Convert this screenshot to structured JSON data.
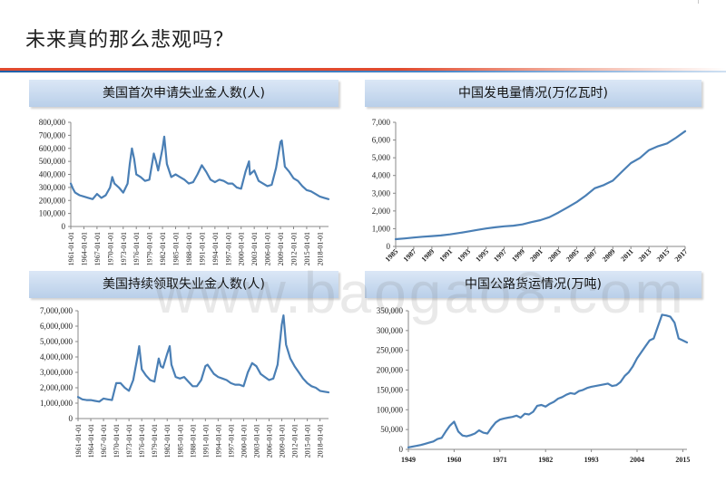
{
  "page": {
    "title": "未来真的那么悲观吗？",
    "watermark": "www.baogao8.com"
  },
  "colors": {
    "line": "#4a7fb5",
    "accent_red": "#e04a2e",
    "accent_blue": "#1f5fa8",
    "header_bg": "#c9dbf0"
  },
  "chart_data": [
    {
      "id": "initial-claims",
      "type": "line",
      "title": "美国首次申请失业金人数(人)",
      "xlabel": "",
      "ylabel": "",
      "ylim": [
        0,
        800000
      ],
      "yticks": [
        0,
        100000,
        200000,
        300000,
        400000,
        500000,
        600000,
        700000,
        800000
      ],
      "ytick_labels": [
        "0",
        "100,000",
        "200,000",
        "300,000",
        "400,000",
        "500,000",
        "600,000",
        "700,000",
        "800,000"
      ],
      "xlim": [
        1961,
        2020
      ],
      "xtick_labels": [
        "1961-01-01",
        "1964-01-01",
        "1967-01-01",
        "1970-01-01",
        "1973-01-01",
        "1976-01-01",
        "1979-01-01",
        "1982-01-01",
        "1985-01-01",
        "1988-01-01",
        "1991-01-01",
        "1994-01-01",
        "1997-01-01",
        "2000-01-01",
        "2003-01-01",
        "2006-01-01",
        "2009-01-01",
        "2012-01-01",
        "2015-01-01",
        "2018-01-01"
      ],
      "x": [
        1961,
        1961.5,
        1962,
        1963,
        1964,
        1965,
        1966,
        1967,
        1968,
        1969,
        1970,
        1970.5,
        1971,
        1972,
        1973,
        1974,
        1974.5,
        1975,
        1975.5,
        1976,
        1977,
        1978,
        1979,
        1980,
        1980.5,
        1981,
        1982,
        1982.4,
        1983,
        1984,
        1985,
        1986,
        1987,
        1988,
        1989,
        1990,
        1991,
        1992,
        1993,
        1994,
        1995,
        1996,
        1997,
        1998,
        1999,
        2000,
        2001,
        2001.8,
        2002,
        2003,
        2004,
        2005,
        2006,
        2007,
        2008,
        2009,
        2009.3,
        2010,
        2011,
        2012,
        2013,
        2014,
        2015,
        2016,
        2017,
        2018,
        2019,
        2020
      ],
      "values": [
        330000,
        290000,
        260000,
        240000,
        230000,
        220000,
        210000,
        250000,
        220000,
        240000,
        300000,
        380000,
        330000,
        300000,
        260000,
        330000,
        480000,
        600000,
        520000,
        400000,
        380000,
        350000,
        360000,
        560000,
        500000,
        430000,
        600000,
        690000,
        480000,
        380000,
        400000,
        380000,
        360000,
        330000,
        340000,
        400000,
        470000,
        420000,
        360000,
        340000,
        360000,
        350000,
        330000,
        330000,
        300000,
        290000,
        420000,
        500000,
        400000,
        430000,
        350000,
        330000,
        310000,
        320000,
        450000,
        650000,
        660000,
        460000,
        420000,
        370000,
        350000,
        310000,
        280000,
        270000,
        250000,
        230000,
        220000,
        210000
      ]
    },
    {
      "id": "power-generation",
      "type": "line",
      "title": "中国发电量情况(万亿瓦时)",
      "xlabel": "",
      "ylabel": "",
      "ylim": [
        0,
        7000
      ],
      "yticks": [
        0,
        1000,
        2000,
        3000,
        4000,
        5000,
        6000,
        7000
      ],
      "ytick_labels": [
        "0",
        "1,000",
        "2,000",
        "3,000",
        "4,000",
        "5,000",
        "6,000",
        "7,000"
      ],
      "xlim": [
        1985,
        2017
      ],
      "xtick_labels": [
        "1985",
        "1987",
        "1989",
        "1991",
        "1993",
        "1995",
        "1997",
        "1999",
        "2001",
        "2003",
        "2005",
        "2007",
        "2009",
        "2011",
        "2013",
        "2015",
        "2017"
      ],
      "x": [
        1985,
        1986,
        1987,
        1988,
        1989,
        1990,
        1991,
        1992,
        1993,
        1994,
        1995,
        1996,
        1997,
        1998,
        1999,
        2000,
        2001,
        2002,
        2003,
        2004,
        2005,
        2006,
        2007,
        2008,
        2009,
        2010,
        2011,
        2012,
        2013,
        2014,
        2015,
        2016,
        2017
      ],
      "values": [
        410,
        450,
        500,
        545,
        585,
        620,
        680,
        755,
        840,
        930,
        1010,
        1080,
        1135,
        1170,
        1240,
        1370,
        1480,
        1650,
        1910,
        2200,
        2500,
        2860,
        3280,
        3460,
        3710,
        4210,
        4700,
        4990,
        5430,
        5650,
        5810,
        6130,
        6500
      ]
    },
    {
      "id": "continuing-claims",
      "type": "line",
      "title": "美国持续领取失业金人数(人)",
      "xlabel": "",
      "ylabel": "",
      "ylim": [
        0,
        7000000
      ],
      "yticks": [
        0,
        1000000,
        2000000,
        3000000,
        4000000,
        5000000,
        6000000,
        7000000
      ],
      "ytick_labels": [
        "0",
        "1,000,000",
        "2,000,000",
        "3,000,000",
        "4,000,000",
        "5,000,000",
        "6,000,000",
        "7,000,000"
      ],
      "xlim": [
        1961,
        2020
      ],
      "xtick_labels": [
        "1961-01-01",
        "1964-01-01",
        "1967-01-01",
        "1970-01-01",
        "1973-01-01",
        "1976-01-01",
        "1979-01-01",
        "1982-01-01",
        "1985-01-01",
        "1988-01-01",
        "1991-01-01",
        "1994-01-01",
        "1997-01-01",
        "2000-01-01",
        "2003-01-01",
        "2006-01-01",
        "2009-01-01",
        "2012-01-01",
        "2015-01-01",
        "2018-01-01"
      ],
      "x": [
        1961,
        1962,
        1963,
        1964,
        1965,
        1966,
        1967,
        1968,
        1969,
        1970,
        1971,
        1972,
        1973,
        1974,
        1975,
        1975.4,
        1976,
        1977,
        1978,
        1979,
        1980,
        1980.5,
        1981,
        1982,
        1982.6,
        1983,
        1984,
        1985,
        1986,
        1987,
        1988,
        1989,
        1990,
        1991,
        1991.5,
        1992,
        1993,
        1994,
        1995,
        1996,
        1997,
        1998,
        1999,
        2000,
        2001,
        2002,
        2003,
        2004,
        2005,
        2006,
        2007,
        2008,
        2009,
        2009.4,
        2010,
        2011,
        2012,
        2013,
        2014,
        2015,
        2016,
        2017,
        2018,
        2019,
        2020
      ],
      "values": [
        1400000,
        1250000,
        1200000,
        1200000,
        1150000,
        1100000,
        1300000,
        1250000,
        1200000,
        2300000,
        2300000,
        2000000,
        1800000,
        2500000,
        4000000,
        4700000,
        3200000,
        2800000,
        2500000,
        2400000,
        3900000,
        3400000,
        3300000,
        4200000,
        4700000,
        3500000,
        2700000,
        2600000,
        2700000,
        2400000,
        2100000,
        2100000,
        2500000,
        3400000,
        3500000,
        3300000,
        2900000,
        2700000,
        2600000,
        2500000,
        2300000,
        2200000,
        2200000,
        2100000,
        3000000,
        3600000,
        3400000,
        2900000,
        2700000,
        2500000,
        2600000,
        3500000,
        6100000,
        6700000,
        4800000,
        3900000,
        3400000,
        3000000,
        2600000,
        2300000,
        2100000,
        2000000,
        1800000,
        1750000,
        1700000
      ]
    },
    {
      "id": "highway-freight",
      "type": "line",
      "title": "中国公路货运情况(万吨)",
      "xlabel": "",
      "ylabel": "",
      "ylim": [
        0,
        350000
      ],
      "yticks": [
        0,
        50000,
        100000,
        150000,
        200000,
        250000,
        300000,
        350000
      ],
      "ytick_labels": [
        "0",
        "50,000",
        "100,000",
        "150,000",
        "200,000",
        "250,000",
        "300,000",
        "350,000"
      ],
      "xlim": [
        1949,
        2016
      ],
      "xtick_labels": [
        "1949",
        "1960",
        "1971",
        "1982",
        "1993",
        "2004",
        "2015"
      ],
      "x": [
        1949,
        1950,
        1951,
        1952,
        1953,
        1954,
        1955,
        1956,
        1957,
        1958,
        1959,
        1960,
        1961,
        1962,
        1963,
        1964,
        1965,
        1966,
        1967,
        1968,
        1969,
        1970,
        1971,
        1972,
        1973,
        1974,
        1975,
        1976,
        1977,
        1978,
        1979,
        1980,
        1981,
        1982,
        1983,
        1984,
        1985,
        1986,
        1987,
        1988,
        1989,
        1990,
        1991,
        1992,
        1993,
        1994,
        1995,
        1996,
        1997,
        1998,
        1999,
        2000,
        2001,
        2002,
        2003,
        2004,
        2005,
        2006,
        2007,
        2008,
        2009,
        2010,
        2011,
        2012,
        2013,
        2014,
        2015,
        2016
      ],
      "values": [
        5000,
        7000,
        9000,
        11000,
        14000,
        17000,
        20000,
        26000,
        29000,
        45000,
        60000,
        70000,
        45000,
        35000,
        33000,
        36000,
        40000,
        48000,
        42000,
        40000,
        55000,
        68000,
        75000,
        78000,
        80000,
        82000,
        85000,
        80000,
        90000,
        88000,
        95000,
        110000,
        112000,
        108000,
        115000,
        120000,
        128000,
        132000,
        138000,
        142000,
        140000,
        147000,
        150000,
        155000,
        158000,
        160000,
        162000,
        164000,
        166000,
        160000,
        162000,
        170000,
        185000,
        195000,
        210000,
        230000,
        245000,
        260000,
        275000,
        280000,
        310000,
        340000,
        338000,
        335000,
        320000,
        280000,
        275000,
        270000
      ]
    }
  ]
}
